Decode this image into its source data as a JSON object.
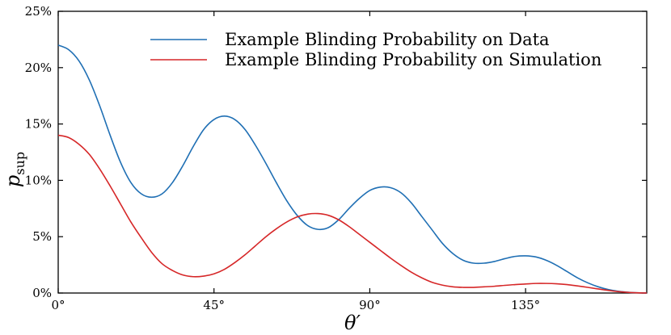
{
  "chart_data": {
    "type": "line",
    "xlabel": "θ′",
    "ylabel": "p",
    "ylabel_sub": "sup",
    "xlim": [
      0,
      170
    ],
    "ylim": [
      0,
      25
    ],
    "x_ticks": [
      {
        "value": 0,
        "label": "0°"
      },
      {
        "value": 45,
        "label": "45°"
      },
      {
        "value": 90,
        "label": "90°"
      },
      {
        "value": 135,
        "label": "135°"
      }
    ],
    "y_ticks": [
      {
        "value": 0,
        "label": "0%"
      },
      {
        "value": 5,
        "label": "5%"
      },
      {
        "value": 10,
        "label": "10%"
      },
      {
        "value": 15,
        "label": "15%"
      },
      {
        "value": 20,
        "label": "20%"
      },
      {
        "value": 25,
        "label": "25%"
      }
    ],
    "legend_position": "top-right",
    "series": [
      {
        "name": "Example Blinding Probability on Data",
        "color": "#1f6fb4",
        "points": [
          [
            0,
            22.0
          ],
          [
            3,
            21.6
          ],
          [
            6,
            20.6
          ],
          [
            9,
            18.9
          ],
          [
            12,
            16.6
          ],
          [
            15,
            14.0
          ],
          [
            18,
            11.6
          ],
          [
            21,
            9.8
          ],
          [
            24,
            8.8
          ],
          [
            27,
            8.5
          ],
          [
            30,
            8.8
          ],
          [
            33,
            9.8
          ],
          [
            36,
            11.3
          ],
          [
            39,
            13.0
          ],
          [
            42,
            14.5
          ],
          [
            45,
            15.4
          ],
          [
            48,
            15.7
          ],
          [
            51,
            15.4
          ],
          [
            54,
            14.5
          ],
          [
            57,
            13.1
          ],
          [
            60,
            11.5
          ],
          [
            63,
            9.8
          ],
          [
            66,
            8.2
          ],
          [
            69,
            6.9
          ],
          [
            72,
            6.0
          ],
          [
            75,
            5.65
          ],
          [
            78,
            5.8
          ],
          [
            81,
            6.5
          ],
          [
            84,
            7.5
          ],
          [
            87,
            8.4
          ],
          [
            90,
            9.1
          ],
          [
            93,
            9.4
          ],
          [
            96,
            9.35
          ],
          [
            99,
            8.9
          ],
          [
            102,
            8.0
          ],
          [
            105,
            6.8
          ],
          [
            108,
            5.6
          ],
          [
            111,
            4.4
          ],
          [
            114,
            3.5
          ],
          [
            117,
            2.9
          ],
          [
            120,
            2.65
          ],
          [
            123,
            2.65
          ],
          [
            126,
            2.8
          ],
          [
            129,
            3.05
          ],
          [
            132,
            3.25
          ],
          [
            135,
            3.3
          ],
          [
            138,
            3.2
          ],
          [
            141,
            2.9
          ],
          [
            144,
            2.45
          ],
          [
            147,
            1.9
          ],
          [
            150,
            1.35
          ],
          [
            153,
            0.9
          ],
          [
            156,
            0.55
          ],
          [
            159,
            0.3
          ],
          [
            162,
            0.15
          ],
          [
            165,
            0.06
          ],
          [
            168,
            0.01
          ],
          [
            170,
            0.0
          ]
        ]
      },
      {
        "name": "Example Blinding Probability on Simulation",
        "color": "#d62728",
        "points": [
          [
            0,
            14.0
          ],
          [
            3,
            13.8
          ],
          [
            6,
            13.2
          ],
          [
            9,
            12.3
          ],
          [
            12,
            11.0
          ],
          [
            15,
            9.5
          ],
          [
            18,
            7.9
          ],
          [
            21,
            6.3
          ],
          [
            24,
            4.9
          ],
          [
            27,
            3.6
          ],
          [
            30,
            2.6
          ],
          [
            33,
            2.0
          ],
          [
            36,
            1.6
          ],
          [
            39,
            1.45
          ],
          [
            42,
            1.5
          ],
          [
            45,
            1.7
          ],
          [
            48,
            2.1
          ],
          [
            51,
            2.7
          ],
          [
            54,
            3.4
          ],
          [
            57,
            4.2
          ],
          [
            60,
            5.0
          ],
          [
            63,
            5.7
          ],
          [
            66,
            6.3
          ],
          [
            69,
            6.75
          ],
          [
            72,
            7.0
          ],
          [
            75,
            7.05
          ],
          [
            78,
            6.9
          ],
          [
            81,
            6.5
          ],
          [
            84,
            5.9
          ],
          [
            87,
            5.2
          ],
          [
            90,
            4.5
          ],
          [
            93,
            3.8
          ],
          [
            96,
            3.1
          ],
          [
            99,
            2.45
          ],
          [
            102,
            1.85
          ],
          [
            105,
            1.35
          ],
          [
            108,
            0.95
          ],
          [
            111,
            0.7
          ],
          [
            114,
            0.55
          ],
          [
            117,
            0.5
          ],
          [
            120,
            0.5
          ],
          [
            123,
            0.55
          ],
          [
            126,
            0.6
          ],
          [
            129,
            0.68
          ],
          [
            132,
            0.75
          ],
          [
            135,
            0.8
          ],
          [
            138,
            0.85
          ],
          [
            141,
            0.85
          ],
          [
            144,
            0.82
          ],
          [
            147,
            0.75
          ],
          [
            150,
            0.63
          ],
          [
            153,
            0.5
          ],
          [
            156,
            0.36
          ],
          [
            159,
            0.23
          ],
          [
            162,
            0.12
          ],
          [
            165,
            0.05
          ],
          [
            168,
            0.01
          ],
          [
            170,
            0.0
          ]
        ]
      }
    ]
  }
}
